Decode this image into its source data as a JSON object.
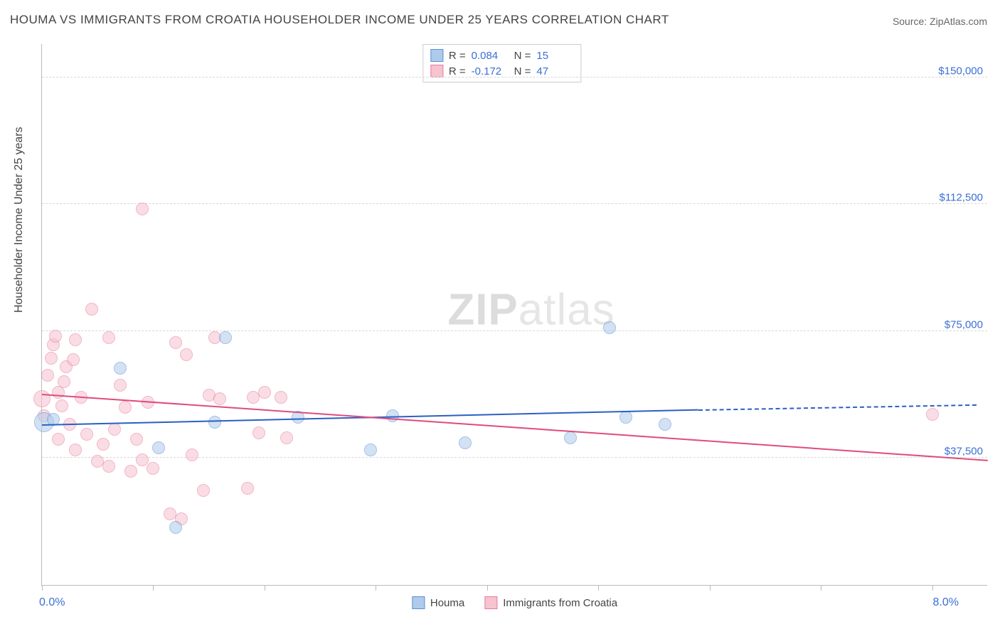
{
  "title": "HOUMA VS IMMIGRANTS FROM CROATIA HOUSEHOLDER INCOME UNDER 25 YEARS CORRELATION CHART",
  "source": "Source: ZipAtlas.com",
  "watermark_a": "ZIP",
  "watermark_b": "atlas",
  "yaxis_title": "Householder Income Under 25 years",
  "chart": {
    "type": "scatter",
    "xlim": [
      0,
      8.5
    ],
    "ylim": [
      0,
      160000
    ],
    "background_color": "#ffffff",
    "grid_color": "#d8d8d8",
    "axis_color": "#bbbbbb",
    "label_color": "#3b6fd6",
    "title_color": "#444444",
    "title_fontsize": 17,
    "label_fontsize": 16,
    "ytick_labels": [
      "$37,500",
      "$75,000",
      "$112,500",
      "$150,000"
    ],
    "ytick_values": [
      37500,
      75000,
      112500,
      150000
    ],
    "xtick_values": [
      0,
      1,
      2,
      3,
      4,
      5,
      6,
      7,
      8
    ],
    "xaxis_min_label": "0.0%",
    "xaxis_max_label": "8.0%",
    "marker_radius": 9,
    "marker_radius_big": 14,
    "marker_opacity": 0.55,
    "line_width": 2
  },
  "series": [
    {
      "name": "Houma",
      "fill": "#aecbeb",
      "stroke": "#5b8fd6",
      "line_color": "#2b5fc4",
      "R": "0.084",
      "N": "15",
      "trend_start": [
        0,
        47000
      ],
      "trend_end_solid": [
        5.9,
        51500
      ],
      "trend_end_dash": [
        8.4,
        53000
      ],
      "points": [
        [
          0.02,
          48000,
          14
        ],
        [
          0.1,
          49000,
          9
        ],
        [
          0.7,
          64000,
          9
        ],
        [
          1.05,
          40500,
          9
        ],
        [
          1.2,
          17000,
          9
        ],
        [
          1.55,
          48000,
          9
        ],
        [
          1.65,
          73000,
          9
        ],
        [
          2.3,
          49500,
          9
        ],
        [
          2.95,
          40000,
          9
        ],
        [
          3.15,
          50000,
          9
        ],
        [
          3.8,
          42000,
          9
        ],
        [
          4.75,
          43500,
          9
        ],
        [
          5.1,
          76000,
          9
        ],
        [
          5.25,
          49500,
          9
        ],
        [
          5.6,
          47500,
          9
        ]
      ]
    },
    {
      "name": "Immigrants from Croatia",
      "fill": "#f6c3cf",
      "stroke": "#e87a9a",
      "line_color": "#e04b7d",
      "R": "-0.172",
      "N": "47",
      "trend_start": [
        0,
        56000
      ],
      "trend_end_solid": [
        8.5,
        36500
      ],
      "trend_end_dash": null,
      "points": [
        [
          0.0,
          55000,
          12
        ],
        [
          0.02,
          50000,
          9
        ],
        [
          0.05,
          62000,
          9
        ],
        [
          0.08,
          67000,
          9
        ],
        [
          0.1,
          71000,
          9
        ],
        [
          0.12,
          73500,
          9
        ],
        [
          0.15,
          57000,
          9
        ],
        [
          0.15,
          43000,
          9
        ],
        [
          0.18,
          53000,
          9
        ],
        [
          0.2,
          60000,
          9
        ],
        [
          0.22,
          64500,
          9
        ],
        [
          0.25,
          47500,
          9
        ],
        [
          0.28,
          66500,
          9
        ],
        [
          0.3,
          72500,
          9
        ],
        [
          0.3,
          40000,
          9
        ],
        [
          0.35,
          55500,
          9
        ],
        [
          0.4,
          44500,
          9
        ],
        [
          0.45,
          81500,
          9
        ],
        [
          0.5,
          36500,
          9
        ],
        [
          0.55,
          41500,
          9
        ],
        [
          0.6,
          73000,
          9
        ],
        [
          0.6,
          35000,
          9
        ],
        [
          0.65,
          46000,
          9
        ],
        [
          0.7,
          59000,
          9
        ],
        [
          0.75,
          52500,
          9
        ],
        [
          0.8,
          33500,
          9
        ],
        [
          0.85,
          43000,
          9
        ],
        [
          0.9,
          111000,
          9
        ],
        [
          0.9,
          37000,
          9
        ],
        [
          0.95,
          54000,
          9
        ],
        [
          1.0,
          34500,
          9
        ],
        [
          1.15,
          21000,
          9
        ],
        [
          1.2,
          71500,
          9
        ],
        [
          1.25,
          19500,
          9
        ],
        [
          1.3,
          68000,
          9
        ],
        [
          1.35,
          38500,
          9
        ],
        [
          1.45,
          28000,
          9
        ],
        [
          1.5,
          56000,
          9
        ],
        [
          1.55,
          73000,
          9
        ],
        [
          1.6,
          55000,
          9
        ],
        [
          1.85,
          28500,
          9
        ],
        [
          1.9,
          55500,
          9
        ],
        [
          1.95,
          45000,
          9
        ],
        [
          2.0,
          57000,
          9
        ],
        [
          2.15,
          55500,
          9
        ],
        [
          2.2,
          43500,
          9
        ],
        [
          8.0,
          50500,
          9
        ]
      ]
    }
  ],
  "bottom_legend": {
    "a": "Houma",
    "b": "Immigrants from Croatia"
  }
}
